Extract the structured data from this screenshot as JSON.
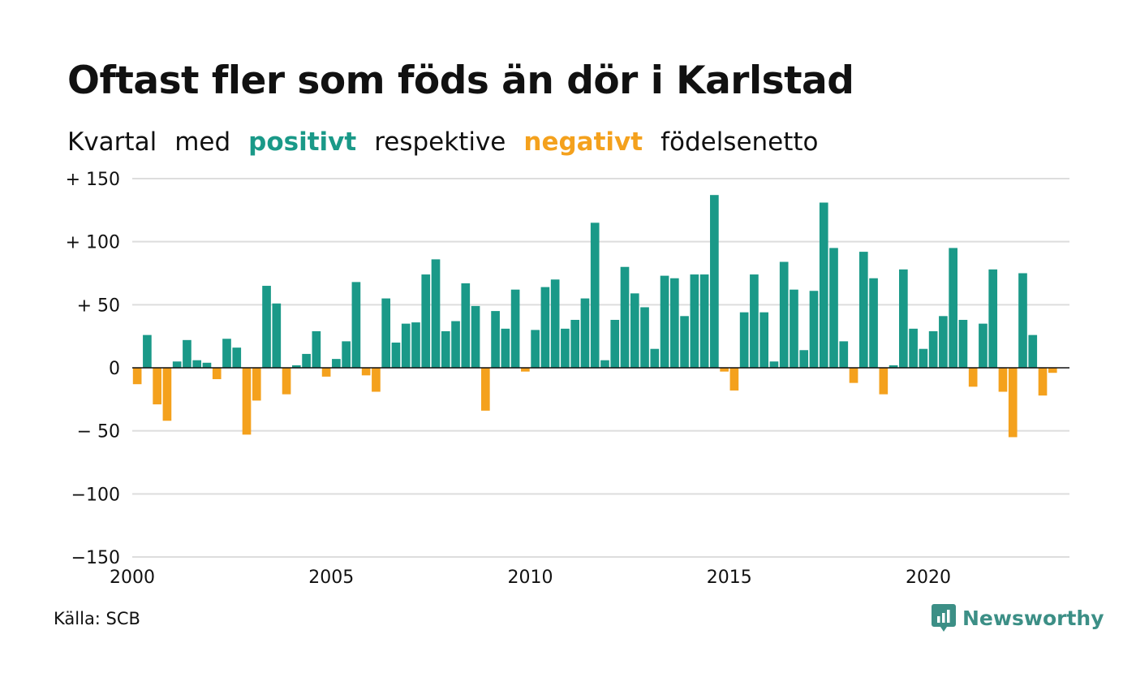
{
  "title": "Oftast fler som föds än dör i Karlstad",
  "subtitle": {
    "part1": "Kvartal",
    "part2": "med",
    "positive_word": "positivt",
    "part3": "respektive",
    "negative_word": "negativt",
    "part4": "födelsenetto"
  },
  "source": "Källa: SCB",
  "brand": "Newsworthy",
  "colors": {
    "positive": "#1a9988",
    "negative": "#f4a11d",
    "brand": "#3c8f86"
  },
  "chart_data": {
    "type": "bar",
    "x_start": 2000,
    "x_end": 2024,
    "x_ticks": [
      2000,
      2005,
      2010,
      2015,
      2020
    ],
    "ylim": [
      -150,
      150
    ],
    "y_ticks": [
      150,
      100,
      50,
      0,
      -50,
      -100,
      -150
    ],
    "y_tick_labels": [
      "+ 150",
      "+ 100",
      "+  50",
      "0",
      "− 50",
      "−100",
      "−150"
    ],
    "grid": true,
    "values": [
      -13,
      26,
      -29,
      -42,
      5,
      22,
      6,
      4,
      -9,
      23,
      16,
      -53,
      -26,
      65,
      51,
      -21,
      2,
      11,
      29,
      -7,
      7,
      21,
      68,
      -6,
      -19,
      55,
      20,
      35,
      36,
      74,
      86,
      29,
      37,
      67,
      49,
      -34,
      45,
      31,
      62,
      -3,
      30,
      64,
      70,
      31,
      38,
      55,
      115,
      6,
      38,
      80,
      59,
      48,
      15,
      73,
      71,
      41,
      74,
      74,
      137,
      -3,
      -18,
      44,
      74,
      44,
      5,
      84,
      62,
      14,
      61,
      131,
      95,
      21,
      -12,
      92,
      71,
      -21,
      2,
      78,
      31,
      15,
      29,
      41,
      95,
      38,
      -15,
      35,
      78,
      -19,
      -55,
      75,
      26,
      -22,
      -4
    ]
  }
}
